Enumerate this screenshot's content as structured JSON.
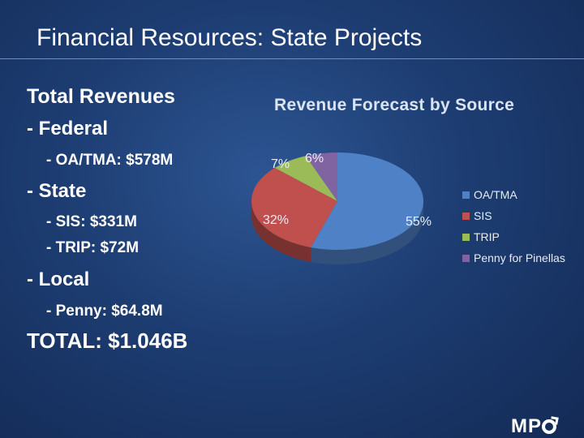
{
  "slide": {
    "title": "Financial Resources: State Projects"
  },
  "outline": [
    {
      "text": "Total Revenues",
      "level": 0
    },
    {
      "text": "- Federal",
      "level": 1
    },
    {
      "text": "- OA/TMA: $578M",
      "level": 2
    },
    {
      "text": "- State",
      "level": 1
    },
    {
      "text": "- SIS: $331M",
      "level": 2
    },
    {
      "text": "- TRIP: $72M",
      "level": 2
    },
    {
      "text": "- Local",
      "level": 1
    },
    {
      "text": "- Penny: $64.8M",
      "level": 2
    },
    {
      "text": "TOTAL: $1.046B",
      "level": 0
    }
  ],
  "logo": {
    "text": "MP"
  },
  "chart_data": {
    "type": "pie",
    "title": "Revenue Forecast by Source",
    "legend_position": "right",
    "slices": [
      {
        "name": "OA/TMA",
        "value": 55,
        "label": "55%",
        "color": "#4f81c7"
      },
      {
        "name": "SIS",
        "value": 32,
        "label": "32%",
        "color": "#c0504d"
      },
      {
        "name": "TRIP",
        "value": 7,
        "label": "7%",
        "color": "#9bbb59"
      },
      {
        "name": "Penny for Pinellas",
        "value": 6,
        "label": "6%",
        "color": "#8064a2"
      }
    ]
  }
}
